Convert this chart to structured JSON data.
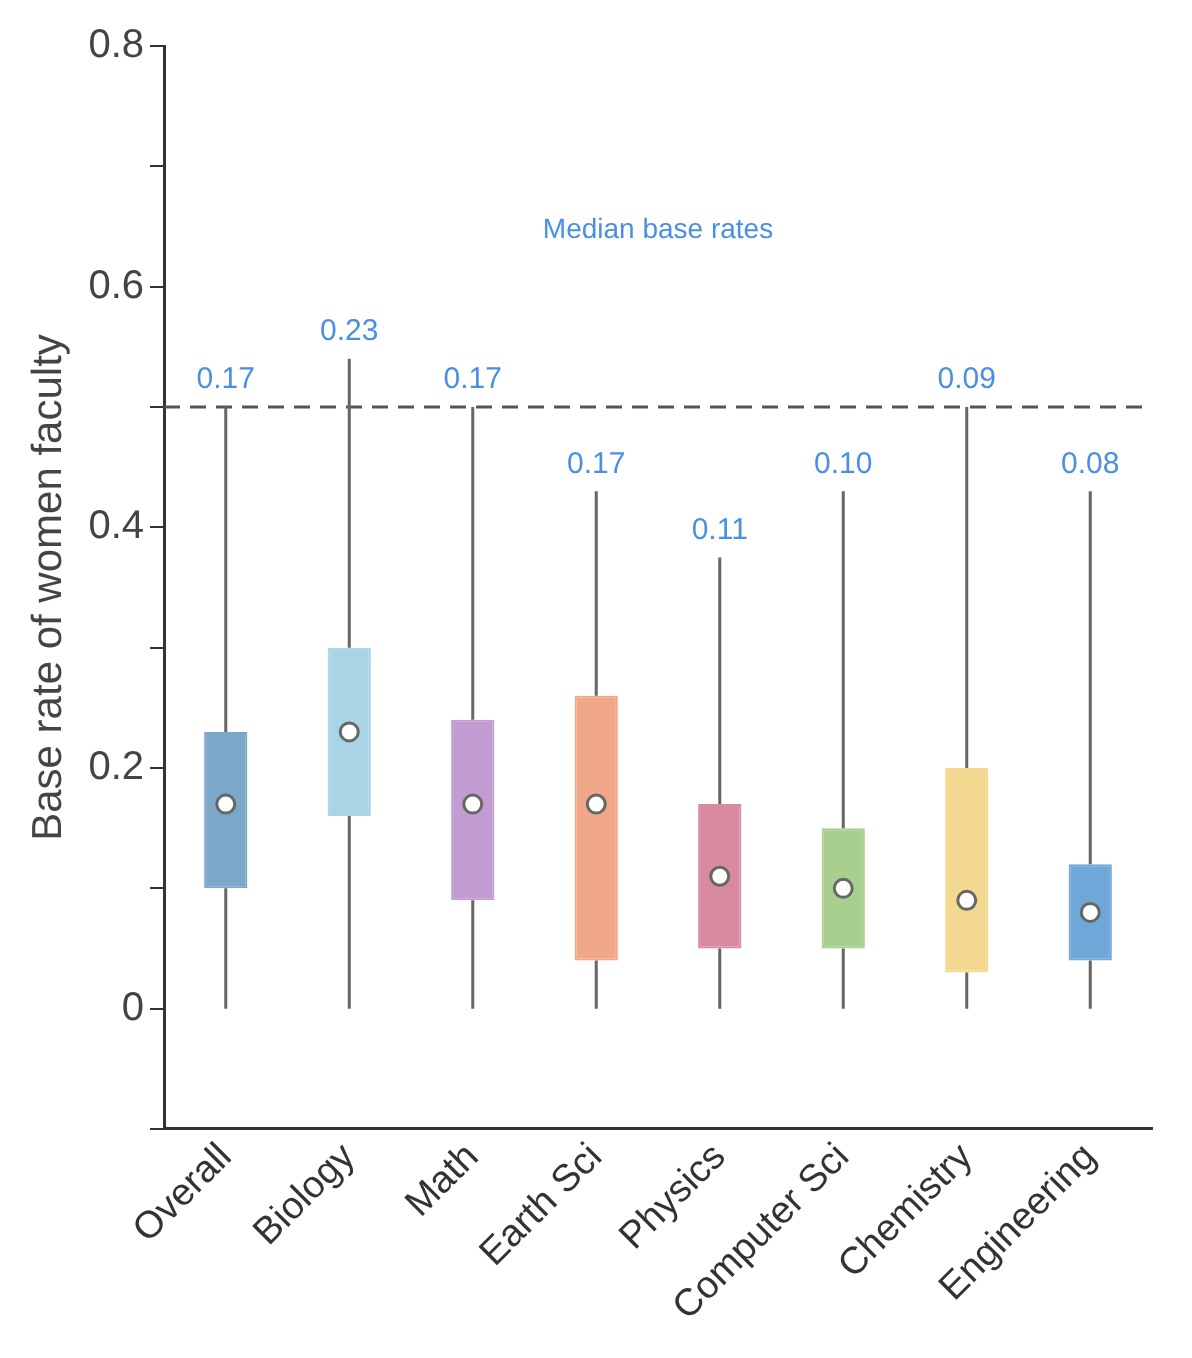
{
  "chart_data": {
    "type": "box",
    "ylabel": "Base rate of women faculty",
    "categories": [
      "Overall",
      "Biology",
      "Math",
      "Earth Sci",
      "Physics",
      "Computer Sci",
      "Chemistry",
      "Engineering"
    ],
    "colors": [
      "#7ba7c9",
      "#a8d4e6",
      "#c39bd3",
      "#f0a888",
      "#d88a9e",
      "#a9cf8f",
      "#f3d98f",
      "#6fa8d8"
    ],
    "boxes": [
      {
        "low": 0,
        "q1": 0.1,
        "median": 0.17,
        "q3": 0.23,
        "high": 0.5
      },
      {
        "low": 0,
        "q1": 0.16,
        "median": 0.23,
        "q3": 0.3,
        "high": 0.54
      },
      {
        "low": 0,
        "q1": 0.09,
        "median": 0.17,
        "q3": 0.24,
        "high": 0.5
      },
      {
        "low": 0,
        "q1": 0.04,
        "median": 0.17,
        "q3": 0.26,
        "high": 0.43
      },
      {
        "low": 0,
        "q1": 0.05,
        "median": 0.11,
        "q3": 0.17,
        "high": 0.375
      },
      {
        "low": 0,
        "q1": 0.05,
        "median": 0.1,
        "q3": 0.15,
        "high": 0.43
      },
      {
        "low": 0,
        "q1": 0.03,
        "median": 0.09,
        "q3": 0.2,
        "high": 0.5
      },
      {
        "low": 0,
        "q1": 0.04,
        "median": 0.08,
        "q3": 0.12,
        "high": 0.43
      }
    ],
    "value_labels": [
      "0.17",
      "0.23",
      "0.17",
      "0.17",
      "0.11",
      "0.10",
      "0.09",
      "0.08"
    ],
    "ylim": [
      -0.1,
      0.8
    ],
    "yticks": [
      {
        "value": -0.1,
        "label": null
      },
      0,
      {
        "value": 0.1,
        "label": null
      },
      0.2,
      {
        "value": 0.3,
        "label": null
      },
      0.4,
      {
        "value": 0.5,
        "label": null
      },
      0.6,
      {
        "value": 0.7,
        "label": null
      },
      0.8
    ],
    "ref_lines": [
      {
        "axis": "y",
        "value": 0.5,
        "color": "#555555",
        "line_style": "dashed"
      }
    ],
    "annotations": [
      "Median base rates"
    ],
    "grid": false,
    "legend": false
  }
}
